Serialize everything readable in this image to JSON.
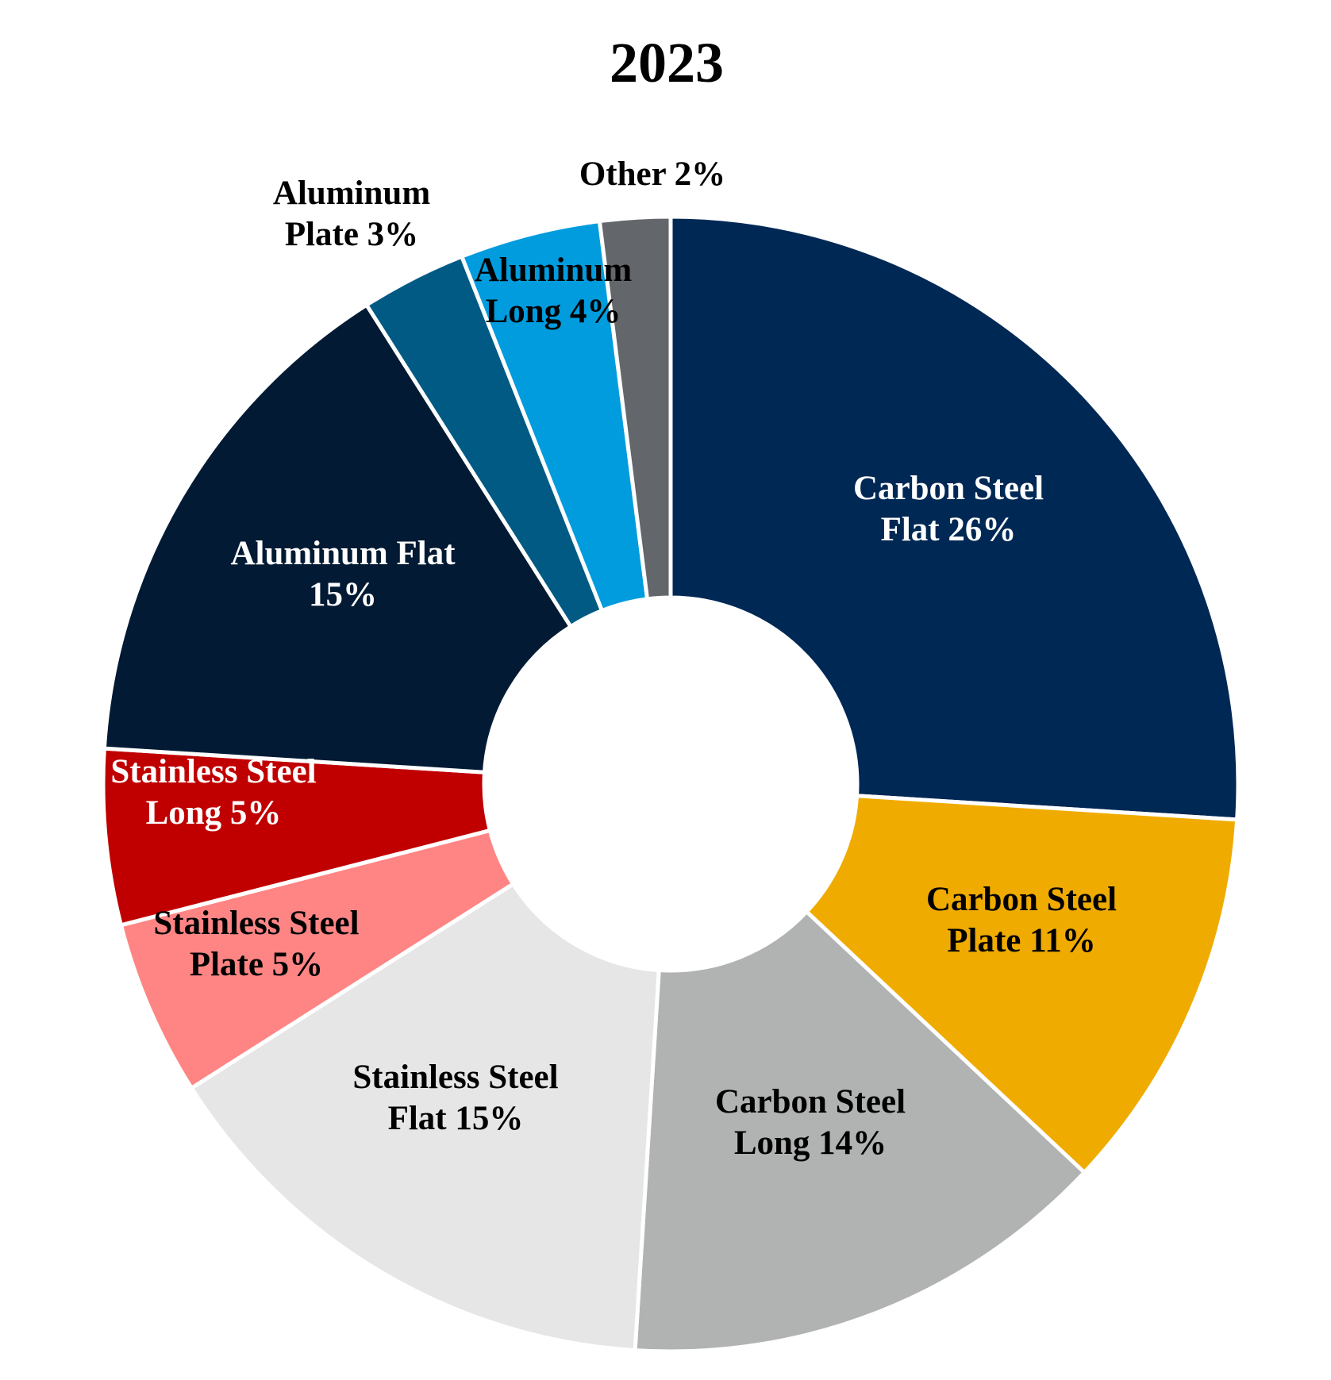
{
  "chart_data": {
    "type": "pie",
    "title": "2023",
    "donut": true,
    "slices": [
      {
        "name": "Carbon Steel Flat",
        "value": 26,
        "label_lines": [
          "Carbon Steel",
          "Flat 26%"
        ],
        "color": "#002855",
        "label_color": "#ffffff"
      },
      {
        "name": "Carbon Steel Plate",
        "value": 11,
        "label_lines": [
          "Carbon Steel",
          "Plate 11%"
        ],
        "color": "#F0AB00",
        "label_color": "#000000"
      },
      {
        "name": "Carbon Steel Long",
        "value": 14,
        "label_lines": [
          "Carbon Steel",
          "Long 14%"
        ],
        "color": "#B1B3B3",
        "label_color": "#000000"
      },
      {
        "name": "Stainless Steel Flat",
        "value": 15,
        "label_lines": [
          "Stainless Steel",
          "Flat 15%"
        ],
        "color": "#E6E6E6",
        "label_color": "#000000"
      },
      {
        "name": "Stainless Steel Plate",
        "value": 5,
        "label_lines": [
          "Stainless Steel",
          "Plate 5%"
        ],
        "color": "#FF8585",
        "label_color": "#000000"
      },
      {
        "name": "Stainless Steel Long",
        "value": 5,
        "label_lines": [
          "Stainless Steel",
          "Long  5%"
        ],
        "color": "#C00000",
        "label_color": "#ffffff"
      },
      {
        "name": "Aluminum Flat",
        "value": 15,
        "label_lines": [
          "Aluminum Flat",
          "15%"
        ],
        "color": "#021A33",
        "label_color": "#ffffff"
      },
      {
        "name": "Aluminum Plate",
        "value": 3,
        "label_lines": [
          "Aluminum",
          "Plate 3%"
        ],
        "color": "#005A84",
        "label_color": "#000000"
      },
      {
        "name": "Aluminum Long",
        "value": 4,
        "label_lines": [
          "Aluminum",
          "Long 4%"
        ],
        "color": "#009CDE",
        "label_color": "#000000"
      },
      {
        "name": "Other",
        "value": 2,
        "label_lines": [
          "Other 2%"
        ],
        "color": "#63666A",
        "label_color": "#000000"
      }
    ]
  }
}
